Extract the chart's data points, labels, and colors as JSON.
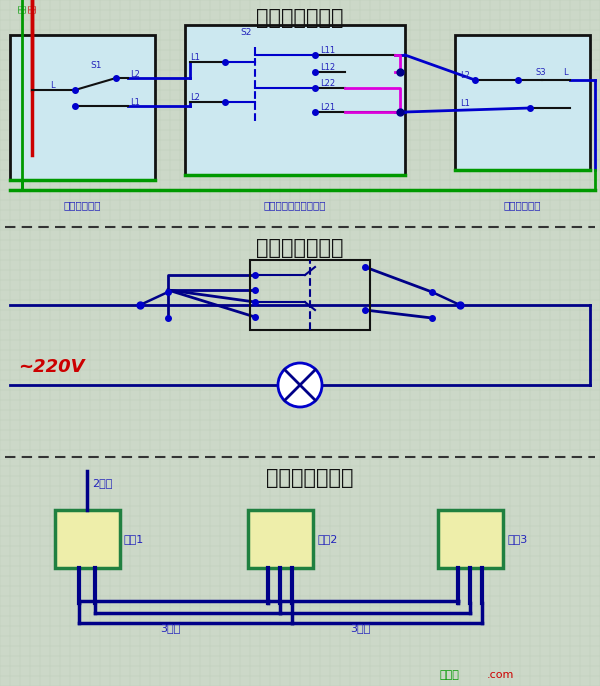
{
  "title1": "三控开关接线图",
  "title2": "三控开关原理图",
  "title3": "三控开关布线图",
  "label_s1": "单开双控开关",
  "label_s2": "中途开关（三控开关）",
  "label_s3": "单开双控开关",
  "label_220v": "~220V",
  "label_switch1": "开关1",
  "label_switch2": "开关2",
  "label_switch3": "开关3",
  "label_2gen": "2根线",
  "label_3gen1": "3根线",
  "label_3gen2": "3根线",
  "xiantu": "接线图",
  "com": ".com",
  "bg_color": "#ccd8c8",
  "panel_bg": "#cce8f0",
  "switch_fill": "#eeeeaa",
  "switch_border": "#208040",
  "grid_color": "#b8ccb4",
  "blue": "#0000cc",
  "green": "#009900",
  "red": "#cc0000",
  "pink": "#dd00dd",
  "dark_blue": "#000088",
  "black": "#111111",
  "text_blue": "#2222bb",
  "text_green": "#007700",
  "sep_color": "#333333",
  "wm_green": "#009900",
  "wm_red": "#cc0000"
}
